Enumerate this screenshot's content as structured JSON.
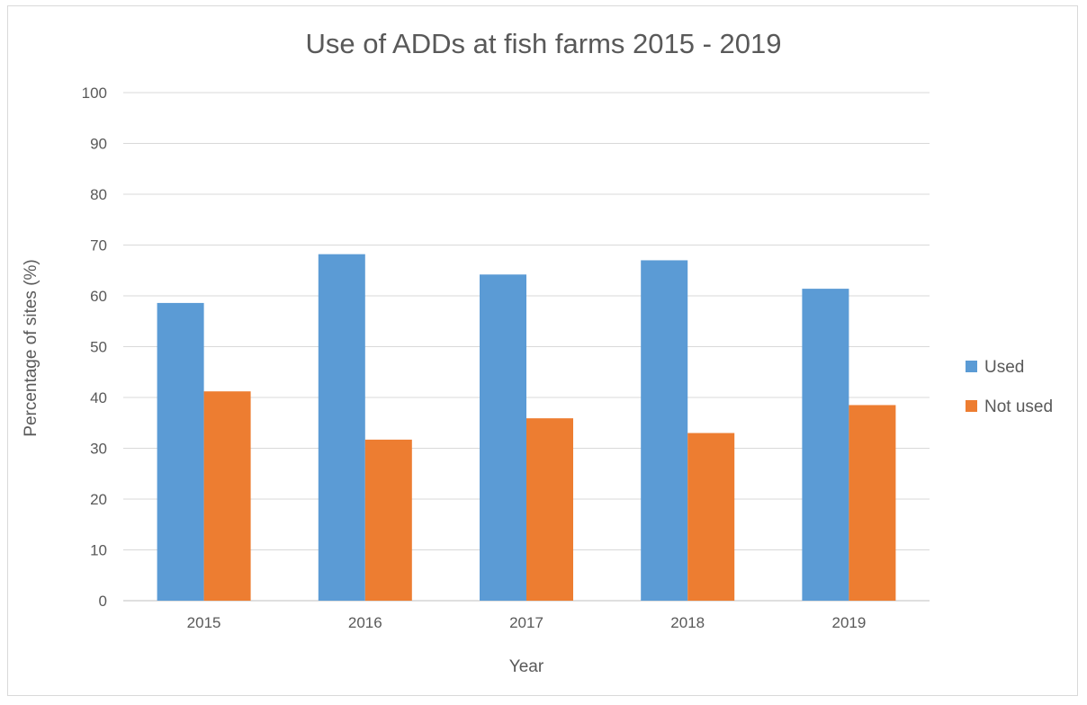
{
  "chart_data": {
    "type": "bar",
    "title": "Use of ADDs at fish farms 2015 - 2019",
    "xlabel": "Year",
    "ylabel": "Percentage of sites (%)",
    "categories": [
      "2015",
      "2016",
      "2017",
      "2018",
      "2019"
    ],
    "ylim": [
      0,
      100
    ],
    "yticks": [
      0,
      10,
      20,
      30,
      40,
      50,
      60,
      70,
      80,
      90,
      100
    ],
    "grid": true,
    "legend_position": "right",
    "series": [
      {
        "name": "Used",
        "color": "#5b9bd5",
        "values": [
          58.6,
          68.2,
          64.2,
          67.0,
          61.4
        ]
      },
      {
        "name": "Not used",
        "color": "#ed7d31",
        "values": [
          41.2,
          31.7,
          35.9,
          33.0,
          38.5
        ]
      }
    ]
  }
}
